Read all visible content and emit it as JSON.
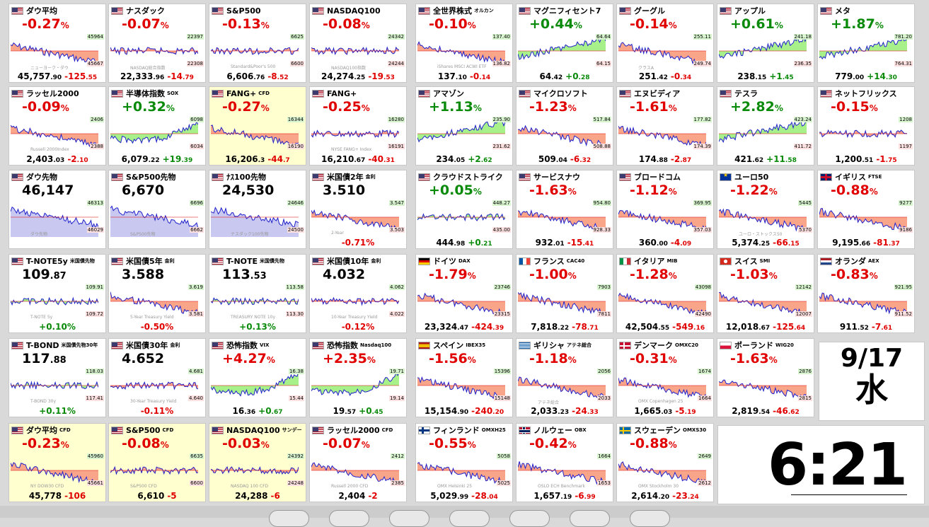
{
  "tiles": [
    {
      "row": 0,
      "col": 0,
      "flag": "us",
      "name": "ダウ平均",
      "sub": "",
      "pct": "-0.27",
      "dir": "neg",
      "price": "45,757",
      "dec": ".90",
      "chg": "-125",
      "chgdec": ".55",
      "hi": "45964",
      "lo": "45667",
      "shape": "dn",
      "hl": false,
      "mode": "pct",
      "wm": "ニューヨーク・ダウ"
    },
    {
      "row": 0,
      "col": 1,
      "flag": "us",
      "name": "ナスダック",
      "sub": "",
      "pct": "-0.07",
      "dir": "neg",
      "price": "22,333",
      "dec": ".96",
      "chg": "-14",
      "chgdec": ".79",
      "hi": "22397",
      "lo": "22308",
      "shape": "flat",
      "hl": false,
      "mode": "pct",
      "wm": "NASDAQ総合指数"
    },
    {
      "row": 0,
      "col": 2,
      "flag": "us",
      "name": "S&P500",
      "sub": "",
      "pct": "-0.13",
      "dir": "neg",
      "price": "6,606",
      "dec": ".76",
      "chg": "-8",
      "chgdec": ".52",
      "hi": "6625",
      "lo": "6600",
      "shape": "flat",
      "hl": false,
      "mode": "pct",
      "wm": "Standard&Poor's 500"
    },
    {
      "row": 0,
      "col": 3,
      "flag": "us",
      "name": "NASDAQ100",
      "sub": "",
      "pct": "-0.08",
      "dir": "neg",
      "price": "24,274",
      "dec": ".25",
      "chg": "-19",
      "chgdec": ".53",
      "hi": "24342",
      "lo": "24244",
      "shape": "flat",
      "hl": false,
      "mode": "pct",
      "wm": "NASDAQ100指数"
    },
    {
      "row": 0,
      "col": 4,
      "flag": "us",
      "name": "全世界株式",
      "sub": "オルカン",
      "pct": "-0.10",
      "dir": "neg",
      "price": "137",
      "dec": ".10",
      "chg": "-0",
      "chgdec": ".14",
      "hi": "137.40",
      "lo": "136.82",
      "shape": "dn",
      "hl": false,
      "mode": "pct",
      "wm": "iShares MSCI ACWI ETF"
    },
    {
      "row": 0,
      "col": 5,
      "flag": "us",
      "name": "マグニフィセント7",
      "sub": "",
      "pct": "+0.44",
      "dir": "pos",
      "price": "64",
      "dec": ".42",
      "chg": "+0",
      "chgdec": ".28",
      "hi": "64.64",
      "lo": "64.15",
      "shape": "up",
      "hl": false,
      "mode": "pct",
      "wm": ""
    },
    {
      "row": 0,
      "col": 6,
      "flag": "us",
      "name": "グーグル",
      "sub": "",
      "pct": "-0.14",
      "dir": "neg",
      "price": "251",
      "dec": ".42",
      "chg": "-0",
      "chgdec": ".34",
      "hi": "255.11",
      "lo": "249.74",
      "shape": "dn",
      "hl": false,
      "mode": "pct",
      "wm": "クラスA"
    },
    {
      "row": 0,
      "col": 7,
      "flag": "us",
      "name": "アップル",
      "sub": "",
      "pct": "+0.61",
      "dir": "pos",
      "price": "238",
      "dec": ".15",
      "chg": "+1",
      "chgdec": ".45",
      "hi": "241.18",
      "lo": "236.35",
      "shape": "up",
      "hl": false,
      "mode": "pct",
      "wm": ""
    },
    {
      "row": 0,
      "col": 8,
      "flag": "us",
      "name": "メタ",
      "sub": "",
      "pct": "+1.87",
      "dir": "pos",
      "price": "779",
      "dec": ".00",
      "chg": "+14",
      "chgdec": ".30",
      "hi": "781.20",
      "lo": "764.31",
      "shape": "up",
      "hl": false,
      "mode": "pct",
      "wm": ""
    },
    {
      "row": 1,
      "col": 0,
      "flag": "us",
      "name": "ラッセル2000",
      "sub": "",
      "pct": "-0.09",
      "dir": "neg",
      "price": "2,403",
      "dec": ".03",
      "chg": "-2",
      "chgdec": ".10",
      "hi": "2406",
      "lo": "2388",
      "shape": "dn",
      "hl": false,
      "mode": "pct",
      "wm": "Russell 2000Index"
    },
    {
      "row": 1,
      "col": 1,
      "flag": "us",
      "name": "半導体指数",
      "sub": "SOX",
      "pct": "+0.32",
      "dir": "pos",
      "price": "6,079",
      "dec": ".22",
      "chg": "+19",
      "chgdec": ".39",
      "hi": "6098",
      "lo": "6034",
      "shape": "vup",
      "hl": false,
      "mode": "pct",
      "wm": ""
    },
    {
      "row": 1,
      "col": 2,
      "flag": "us",
      "name": "FANG+",
      "sub": "CFD",
      "pct": "-0.27",
      "dir": "neg",
      "price": "16,206",
      "dec": ".3",
      "chg": "-44",
      "chgdec": ".7",
      "hi": "16344",
      "lo": "16190",
      "shape": "dn",
      "hl": true,
      "mode": "pct",
      "wm": ""
    },
    {
      "row": 1,
      "col": 3,
      "flag": "us",
      "name": "FANG+",
      "sub": "",
      "pct": "-0.25",
      "dir": "neg",
      "price": "16,210",
      "dec": ".67",
      "chg": "-40",
      "chgdec": ".31",
      "hi": "16280",
      "lo": "16191",
      "shape": "flat",
      "hl": false,
      "mode": "pct",
      "wm": "NYSE FANG+ Index"
    },
    {
      "row": 1,
      "col": 4,
      "flag": "us",
      "name": "アマゾン",
      "sub": "",
      "pct": "+1.13",
      "dir": "pos",
      "price": "234",
      "dec": ".05",
      "chg": "+2",
      "chgdec": ".62",
      "hi": "235.90",
      "lo": "231.62",
      "shape": "up",
      "hl": false,
      "mode": "pct",
      "wm": ""
    },
    {
      "row": 1,
      "col": 5,
      "flag": "us",
      "name": "マイクロソフト",
      "sub": "",
      "pct": "-1.23",
      "dir": "neg",
      "price": "509",
      "dec": ".04",
      "chg": "-6",
      "chgdec": ".32",
      "hi": "517.84",
      "lo": "508.88",
      "shape": "dn",
      "hl": false,
      "mode": "pct",
      "wm": ""
    },
    {
      "row": 1,
      "col": 6,
      "flag": "us",
      "name": "エヌビディア",
      "sub": "",
      "pct": "-1.61",
      "dir": "neg",
      "price": "174",
      "dec": ".88",
      "chg": "-2",
      "chgdec": ".87",
      "hi": "177.82",
      "lo": "174.39",
      "shape": "dn",
      "hl": false,
      "mode": "pct",
      "wm": ""
    },
    {
      "row": 1,
      "col": 7,
      "flag": "us",
      "name": "テスラ",
      "sub": "",
      "pct": "+2.82",
      "dir": "pos",
      "price": "421",
      "dec": ".62",
      "chg": "+11",
      "chgdec": ".58",
      "hi": "423.24",
      "lo": "411.72",
      "shape": "up",
      "hl": false,
      "mode": "pct",
      "wm": ""
    },
    {
      "row": 1,
      "col": 8,
      "flag": "us",
      "name": "ネットフリックス",
      "sub": "",
      "pct": "-0.15",
      "dir": "neg",
      "price": "1,200",
      "dec": ".51",
      "chg": "-1",
      "chgdec": ".75",
      "hi": "1208",
      "lo": "1197",
      "shape": "flat",
      "hl": false,
      "mode": "pct",
      "wm": ""
    },
    {
      "row": 2,
      "col": 0,
      "flag": "us",
      "name": "ダウ先物",
      "sub": "",
      "pct": "",
      "dir": "neg",
      "price": "46,147",
      "dec": "",
      "chg": "",
      "chgdec": "",
      "hi": "46313",
      "lo": "46029",
      "shape": "fut",
      "hl": false,
      "mode": "px",
      "bottompct": "",
      "wm": "ダウ先物"
    },
    {
      "row": 2,
      "col": 1,
      "flag": "us",
      "name": "S&P500先物",
      "sub": "",
      "pct": "",
      "dir": "neg",
      "price": "6,670",
      "dec": "",
      "chg": "",
      "chgdec": "",
      "hi": "6696",
      "lo": "6662",
      "shape": "fut",
      "hl": false,
      "mode": "px",
      "bottompct": "",
      "wm": "S&P500先物"
    },
    {
      "row": 2,
      "col": 2,
      "flag": "us",
      "name": "ﾅｽ100先物",
      "sub": "",
      "pct": "",
      "dir": "neg",
      "price": "24,530",
      "dec": "",
      "chg": "",
      "chgdec": "",
      "hi": "24646",
      "lo": "24500",
      "shape": "fut",
      "hl": false,
      "mode": "px",
      "bottompct": "",
      "wm": "ナスダック100先物"
    },
    {
      "row": 2,
      "col": 3,
      "flag": "us",
      "name": "米国債2年",
      "sub": "金利",
      "pct": "",
      "dir": "neg",
      "price": "3.510",
      "dec": "",
      "chg": "",
      "chgdec": "",
      "hi": "3.547",
      "lo": "3.503",
      "shape": "dn",
      "hl": false,
      "mode": "px",
      "bottompct": "-0.71%",
      "wm": "2-Year"
    },
    {
      "row": 2,
      "col": 4,
      "flag": "us",
      "name": "クラウドストライク",
      "sub": "",
      "pct": "+0.05",
      "dir": "pos",
      "price": "444",
      "dec": ".98",
      "chg": "+0",
      "chgdec": ".21",
      "hi": "448.27",
      "lo": "435.00",
      "shape": "flat",
      "hl": false,
      "mode": "pct",
      "wm": ""
    },
    {
      "row": 2,
      "col": 5,
      "flag": "us",
      "name": "サービスナウ",
      "sub": "",
      "pct": "-1.63",
      "dir": "neg",
      "price": "932",
      "dec": ".01",
      "chg": "-15",
      "chgdec": ".41",
      "hi": "954.80",
      "lo": "928.33",
      "shape": "dn",
      "hl": false,
      "mode": "pct",
      "wm": ""
    },
    {
      "row": 2,
      "col": 6,
      "flag": "us",
      "name": "ブロードコム",
      "sub": "",
      "pct": "-1.12",
      "dir": "neg",
      "price": "360",
      "dec": ".00",
      "chg": "-4",
      "chgdec": ".09",
      "hi": "369.95",
      "lo": "357.03",
      "shape": "dn",
      "hl": false,
      "mode": "pct",
      "wm": ""
    },
    {
      "row": 2,
      "col": 7,
      "flag": "eu",
      "name": "ユーロ50",
      "sub": "",
      "pct": "-1.22",
      "dir": "neg",
      "price": "5,374",
      "dec": ".25",
      "chg": "-66",
      "chgdec": ".15",
      "hi": "5445",
      "lo": "5370",
      "shape": "dn",
      "hl": false,
      "mode": "pct",
      "wm": "ユーロ・ストックス50"
    },
    {
      "row": 2,
      "col": 8,
      "flag": "uk",
      "name": "イギリス",
      "sub": "FTSE",
      "pct": "-0.88",
      "dir": "neg",
      "price": "9,195",
      "dec": ".66",
      "chg": "-81",
      "chgdec": ".37",
      "hi": "9277",
      "lo": "9186",
      "shape": "dn",
      "hl": false,
      "mode": "pct",
      "wm": ""
    },
    {
      "row": 3,
      "col": 0,
      "flag": "us",
      "name": "T-NOTE5y",
      "sub": "米国債先物",
      "pct": "",
      "dir": "pos",
      "price": "109",
      "dec": ".87",
      "chg": "",
      "chgdec": "",
      "hi": "109.91",
      "lo": "109.72",
      "shape": "flat",
      "hl": false,
      "mode": "px",
      "bottompct": "+0.10%",
      "wm": "T-NOTE 5y"
    },
    {
      "row": 3,
      "col": 1,
      "flag": "us",
      "name": "米国債5年",
      "sub": "金利",
      "pct": "",
      "dir": "neg",
      "price": "3.588",
      "dec": "",
      "chg": "",
      "chgdec": "",
      "hi": "3.619",
      "lo": "3.581",
      "shape": "dn",
      "hl": false,
      "mode": "px",
      "bottompct": "-0.50%",
      "wm": "5-Year Treasury Yield"
    },
    {
      "row": 3,
      "col": 2,
      "flag": "us",
      "name": "T-NOTE",
      "sub": "米国債先物",
      "pct": "",
      "dir": "pos",
      "price": "113",
      "dec": ".53",
      "chg": "",
      "chgdec": "",
      "hi": "113.58",
      "lo": "113.30",
      "shape": "flat",
      "hl": false,
      "mode": "px",
      "bottompct": "+0.13%",
      "wm": "TREASURY NOTE 10y"
    },
    {
      "row": 3,
      "col": 3,
      "flag": "us",
      "name": "米国債10年",
      "sub": "金利",
      "pct": "",
      "dir": "neg",
      "price": "4.032",
      "dec": "",
      "chg": "",
      "chgdec": "",
      "hi": "4.062",
      "lo": "4.022",
      "shape": "flat",
      "hl": false,
      "mode": "px",
      "bottompct": "-0.12%",
      "wm": "10-Year Treasury Yield"
    },
    {
      "row": 3,
      "col": 4,
      "flag": "de",
      "name": "ドイツ",
      "sub": "DAX",
      "pct": "-1.79",
      "dir": "neg",
      "price": "23,324",
      "dec": ".47",
      "chg": "-424",
      "chgdec": ".39",
      "hi": "23746",
      "lo": "23315",
      "shape": "dn",
      "hl": false,
      "mode": "pct",
      "wm": ""
    },
    {
      "row": 3,
      "col": 5,
      "flag": "fr",
      "name": "フランス",
      "sub": "CAC40",
      "pct": "-1.00",
      "dir": "neg",
      "price": "7,818",
      "dec": ".22",
      "chg": "-78",
      "chgdec": ".71",
      "hi": "7903",
      "lo": "7811",
      "shape": "dn",
      "hl": false,
      "mode": "pct",
      "wm": ""
    },
    {
      "row": 3,
      "col": 6,
      "flag": "it",
      "name": "イタリア",
      "sub": "MIB",
      "pct": "-1.28",
      "dir": "neg",
      "price": "42,504",
      "dec": ".55",
      "chg": "-549",
      "chgdec": ".16",
      "hi": "43098",
      "lo": "42490",
      "shape": "dn",
      "hl": false,
      "mode": "pct",
      "wm": ""
    },
    {
      "row": 3,
      "col": 7,
      "flag": "ch",
      "name": "スイス",
      "sub": "SMI",
      "pct": "-1.03",
      "dir": "neg",
      "price": "12,018",
      "dec": ".67",
      "chg": "-125",
      "chgdec": ".64",
      "hi": "12142",
      "lo": "12007",
      "shape": "dn",
      "hl": false,
      "mode": "pct",
      "wm": ""
    },
    {
      "row": 3,
      "col": 8,
      "flag": "nl",
      "name": "オランダ",
      "sub": "AEX",
      "pct": "-0.83",
      "dir": "neg",
      "price": "911",
      "dec": ".52",
      "chg": "-7",
      "chgdec": ".61",
      "hi": "921.95",
      "lo": "911.52",
      "shape": "dn",
      "hl": false,
      "mode": "pct",
      "wm": ""
    },
    {
      "row": 4,
      "col": 0,
      "flag": "us",
      "name": "T-BOND",
      "sub": "米国債先物30年",
      "pct": "",
      "dir": "pos",
      "price": "117",
      "dec": ".88",
      "chg": "",
      "chgdec": "",
      "hi": "118.03",
      "lo": "117.41",
      "shape": "flat",
      "hl": false,
      "mode": "px",
      "bottompct": "+0.11%",
      "wm": "T-BOND 30y"
    },
    {
      "row": 4,
      "col": 1,
      "flag": "us",
      "name": "米国債30年",
      "sub": "金利",
      "pct": "",
      "dir": "neg",
      "price": "4.652",
      "dec": "",
      "chg": "",
      "chgdec": "",
      "hi": "4.681",
      "lo": "4.640",
      "shape": "flat",
      "hl": false,
      "mode": "px",
      "bottompct": "-0.11%",
      "wm": "30-Year Treasury Yield"
    },
    {
      "row": 4,
      "col": 2,
      "flag": "us",
      "name": "恐怖指数",
      "sub": "VIX",
      "pct": "+4.27",
      "dir": "pos",
      "price": "16",
      "dec": ".36",
      "chg": "+0",
      "chgdec": ".67",
      "hi": "16.38",
      "lo": "15.44",
      "shape": "vup",
      "hl": false,
      "mode": "pct",
      "pctcolor": "neg",
      "wm": ""
    },
    {
      "row": 4,
      "col": 3,
      "flag": "us",
      "name": "恐怖指数",
      "sub": "Nasdaq100",
      "pct": "+2.35",
      "dir": "pos",
      "price": "19",
      "dec": ".57",
      "chg": "+0",
      "chgdec": ".45",
      "hi": "19.71",
      "lo": "19.14",
      "shape": "vup",
      "hl": false,
      "mode": "pct",
      "pctcolor": "neg",
      "wm": ""
    },
    {
      "row": 4,
      "col": 4,
      "flag": "es",
      "name": "スペイン",
      "sub": "IBEX35",
      "pct": "-1.56",
      "dir": "neg",
      "price": "15,154",
      "dec": ".90",
      "chg": "-240",
      "chgdec": ".20",
      "hi": "15396",
      "lo": "15148",
      "shape": "dn",
      "hl": false,
      "mode": "pct",
      "wm": ""
    },
    {
      "row": 4,
      "col": 5,
      "flag": "gr",
      "name": "ギリシャ",
      "sub": "アテネ総合",
      "pct": "-1.18",
      "dir": "neg",
      "price": "2,033",
      "dec": ".23",
      "chg": "-24",
      "chgdec": ".33",
      "hi": "2056",
      "lo": "2033",
      "shape": "dn",
      "hl": false,
      "mode": "pct",
      "wm": "アテネ総合"
    },
    {
      "row": 4,
      "col": 6,
      "flag": "dk",
      "name": "デンマーク",
      "sub": "OMXC20",
      "pct": "-0.31",
      "dir": "neg",
      "price": "1,665",
      "dec": ".03",
      "chg": "-5",
      "chgdec": ".19",
      "hi": "1674",
      "lo": "1664",
      "shape": "dn",
      "hl": false,
      "mode": "pct",
      "wm": "OMX Copenhagen 25"
    },
    {
      "row": 4,
      "col": 7,
      "flag": "pl",
      "name": "ポーランド",
      "sub": "WIG20",
      "pct": "-1.63",
      "dir": "neg",
      "price": "2,819",
      "dec": ".54",
      "chg": "-46",
      "chgdec": ".62",
      "hi": "2876",
      "lo": "2815",
      "shape": "dn",
      "hl": false,
      "mode": "pct",
      "wm": ""
    },
    {
      "row": 5,
      "col": 0,
      "flag": "us",
      "name": "ダウ平均",
      "sub": "CFD",
      "pct": "-0.23",
      "dir": "neg",
      "price": "45,778",
      "dec": "",
      "chg": "-106",
      "chgdec": "",
      "hi": "45960",
      "lo": "45661",
      "shape": "dn",
      "hl": true,
      "mode": "pct",
      "wm": "NY DOW30 CFD"
    },
    {
      "row": 5,
      "col": 1,
      "flag": "us",
      "name": "S&P500",
      "sub": "CFD",
      "pct": "-0.08",
      "dir": "neg",
      "price": "6,610",
      "dec": "",
      "chg": "-5",
      "chgdec": "",
      "hi": "6635",
      "lo": "6600",
      "shape": "flat",
      "hl": true,
      "mode": "pct",
      "wm": "S&P500 CFD"
    },
    {
      "row": 5,
      "col": 2,
      "flag": "us",
      "name": "NASDAQ100",
      "sub": "サンデー",
      "pct": "-0.03",
      "dir": "neg",
      "price": "24,288",
      "dec": "",
      "chg": "-6",
      "chgdec": "",
      "hi": "24392",
      "lo": "24248",
      "shape": "flat",
      "hl": true,
      "mode": "pct",
      "wm": "NASDAQ 100 CFD"
    },
    {
      "row": 5,
      "col": 3,
      "flag": "us",
      "name": "ラッセル2000",
      "sub": "CFD",
      "pct": "-0.07",
      "dir": "neg",
      "price": "2,404",
      "dec": "",
      "chg": "-2",
      "chgdec": "",
      "hi": "2412",
      "lo": "2385",
      "shape": "dn",
      "hl": false,
      "mode": "pct",
      "wm": "Russell 2000 CFD"
    },
    {
      "row": 5,
      "col": 4,
      "flag": "fi",
      "name": "フィンランド",
      "sub": "OMXH25",
      "pct": "-0.55",
      "dir": "neg",
      "price": "5,029",
      "dec": ".99",
      "chg": "-28",
      "chgdec": ".04",
      "hi": "5058",
      "lo": "5025",
      "shape": "dn",
      "hl": false,
      "mode": "pct",
      "wm": "OMX Helsinki 25"
    },
    {
      "row": 5,
      "col": 5,
      "flag": "no",
      "name": "ノルウェー",
      "sub": "OBX",
      "pct": "-0.42",
      "dir": "neg",
      "price": "1,657",
      "dec": ".19",
      "chg": "-6",
      "chgdec": ".99",
      "hi": "1664",
      "lo": "1653",
      "shape": "dn",
      "hl": false,
      "mode": "pct",
      "wm": "OSLO ECH Benchmark"
    },
    {
      "row": 5,
      "col": 6,
      "flag": "se",
      "name": "スウェーデン",
      "sub": "OMXS30",
      "pct": "-0.88",
      "dir": "neg",
      "price": "2,614",
      "dec": ".20",
      "chg": "-23",
      "chgdec": ".24",
      "hi": "2649",
      "lo": "2612",
      "shape": "dn",
      "hl": false,
      "mode": "pct",
      "wm": "OMX Stockholm 30"
    }
  ],
  "date": {
    "md": "9/17",
    "weekday": "水"
  },
  "clock": {
    "time": "6:21"
  },
  "colors": {
    "pos": "#0a8a0a",
    "neg": "#e00000",
    "fillUp": "#a8f08a",
    "fillDn": "#f9a58a",
    "line": "#2020cc",
    "fut": "#c8c8f0"
  }
}
